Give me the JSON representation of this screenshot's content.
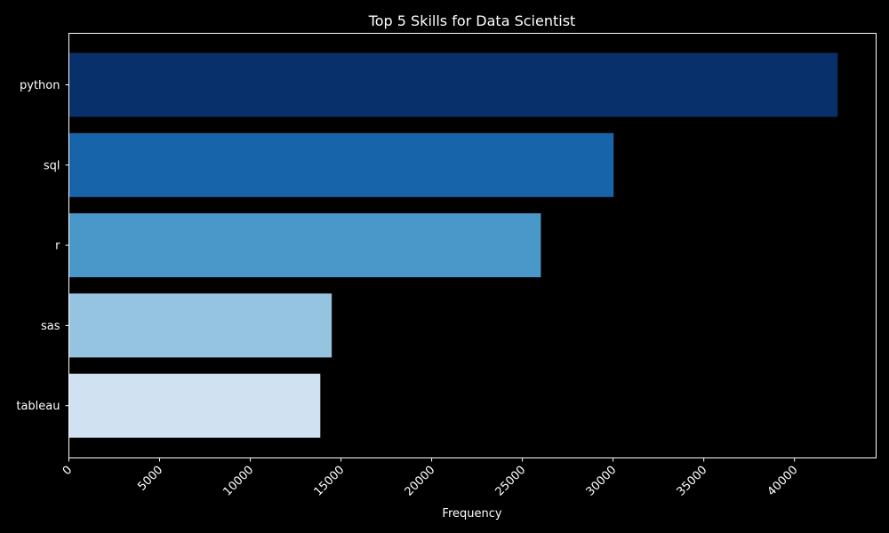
{
  "chart_data": {
    "type": "bar",
    "orientation": "horizontal",
    "title": "Top 5 Skills for Data Scientist",
    "xlabel": "Frequency",
    "ylabel": "",
    "categories": [
      "python",
      "sql",
      "r",
      "sas",
      "tableau"
    ],
    "values": [
      42380,
      30030,
      26020,
      14490,
      13860
    ],
    "xlim": [
      0,
      44500
    ],
    "xticks": [
      0,
      5000,
      10000,
      15000,
      20000,
      25000,
      30000,
      35000,
      40000
    ],
    "colors": [
      "#08306b",
      "#1764ab",
      "#4a98c9",
      "#94c4df",
      "#d0e1f2"
    ],
    "grid": false,
    "legend": "none",
    "background": "#000000",
    "text_color": "#ffffff"
  }
}
